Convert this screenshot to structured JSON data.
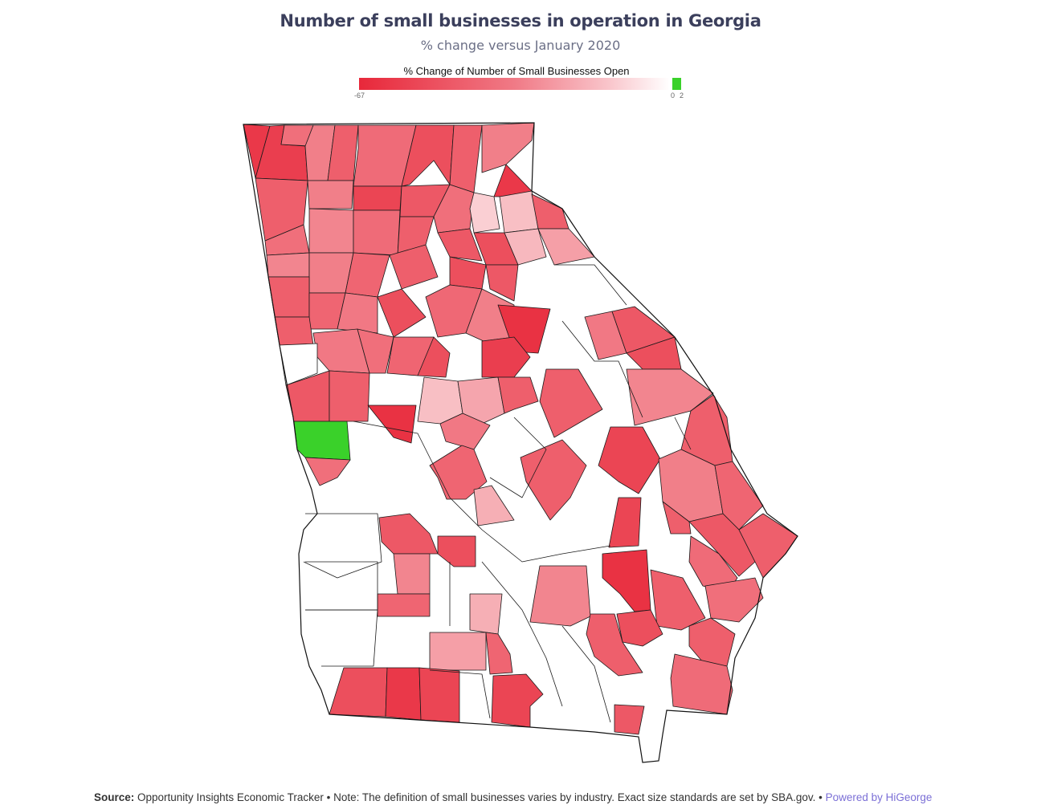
{
  "title": "Number of small businesses in operation in Georgia",
  "subtitle": "% change versus January 2020",
  "legend": {
    "title": "% Change of Number of Small Businesses Open",
    "min_label": "-67",
    "zero_label": "0",
    "max_label": "2",
    "min": -67,
    "max": 2,
    "colors": {
      "low": "#e8283a",
      "zero": "#ffffff",
      "positive": "#3ad12a"
    }
  },
  "footer": {
    "source_label": "Source:",
    "source_text": " Opportunity Insights Economic Tracker • Note: The definition of small businesses varies by industry. Exact size standards are set by SBA.gov. • ",
    "powered_by": "Powered by HiGeorge"
  },
  "chart_data": {
    "type": "choropleth",
    "region": "Georgia counties",
    "value_range": [
      -67,
      2
    ],
    "no_data_color": "#ffffff",
    "positive_county_value": 2
  }
}
